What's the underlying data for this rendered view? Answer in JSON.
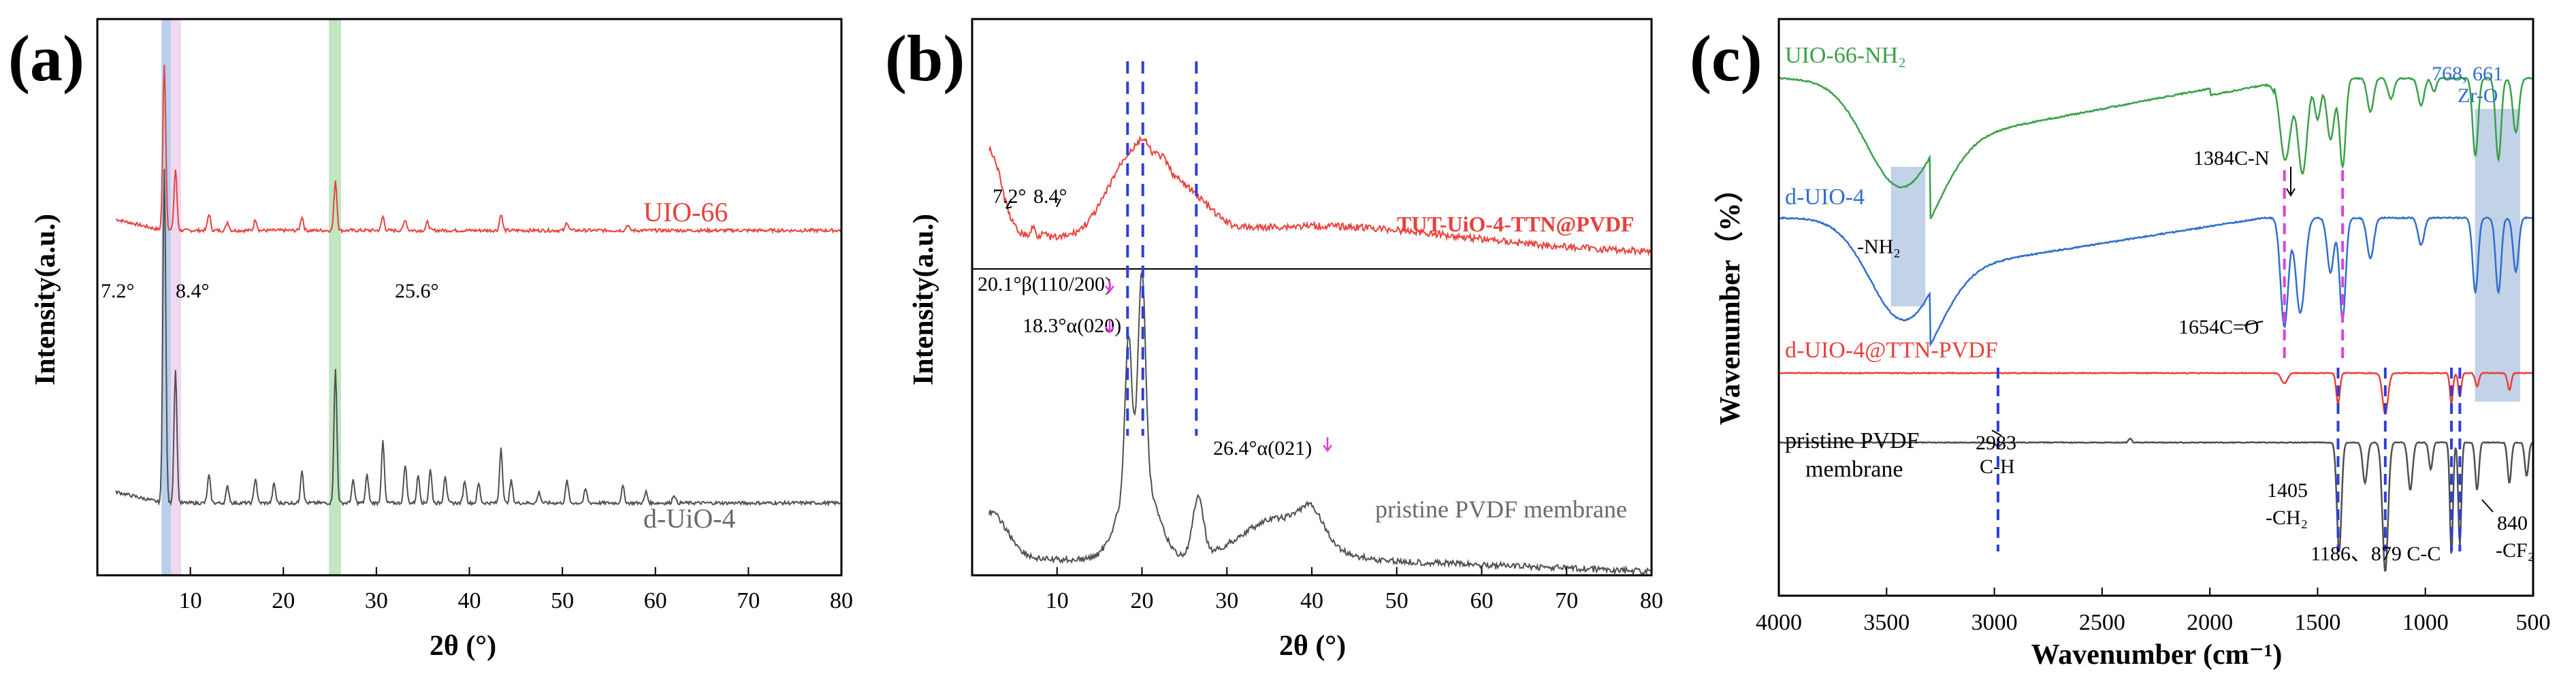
{
  "colors": {
    "red": "#e8413c",
    "dark": "#505050",
    "green": "#3aa04a",
    "blue": "#2f6fd0",
    "magenta": "#e040e0",
    "dash_blue": "#2f3fd8",
    "band_blue": "#7fa8df",
    "band_pink": "#e6b8e6",
    "band_green": "#8fd08f",
    "band_steel": "#9ab6d8"
  },
  "chart_data": [
    {
      "panel": "(a)",
      "type": "line",
      "xlabel": "2θ (°)",
      "ylabel": "Intensity(a.u.)",
      "xlim": [
        0,
        80
      ],
      "xticks": [
        "10",
        "20",
        "30",
        "40",
        "50",
        "60",
        "70",
        "80"
      ],
      "highlight_bands": [
        {
          "from": 6.9,
          "to": 7.9,
          "color": "band_blue"
        },
        {
          "from": 7.9,
          "to": 9.0,
          "color": "band_pink"
        },
        {
          "from": 24.9,
          "to": 26.2,
          "color": "band_green"
        }
      ],
      "series": [
        {
          "name": "UIO-66",
          "color": "red",
          "baseline": 0.62,
          "peaks": [
            [
              7.2,
              0.3
            ],
            [
              8.4,
              0.11
            ],
            [
              12.0,
              0.03
            ],
            [
              14.0,
              0.015
            ],
            [
              17.0,
              0.02
            ],
            [
              22.0,
              0.025
            ],
            [
              25.6,
              0.09
            ],
            [
              30.7,
              0.025
            ],
            [
              33.1,
              0.02
            ],
            [
              35.5,
              0.015
            ],
            [
              43.4,
              0.03
            ],
            [
              50.5,
              0.015
            ],
            [
              57.0,
              0.01
            ]
          ]
        },
        {
          "name": "d-UiO-4",
          "color": "dark",
          "baseline": 0.13,
          "peaks": [
            [
              7.2,
              0.6
            ],
            [
              8.4,
              0.24
            ],
            [
              12.0,
              0.05
            ],
            [
              14.0,
              0.03
            ],
            [
              17.0,
              0.045
            ],
            [
              19.0,
              0.035
            ],
            [
              22.0,
              0.06
            ],
            [
              25.6,
              0.24
            ],
            [
              27.5,
              0.04
            ],
            [
              29.0,
              0.05
            ],
            [
              30.7,
              0.11
            ],
            [
              33.1,
              0.07
            ],
            [
              34.5,
              0.05
            ],
            [
              35.8,
              0.06
            ],
            [
              37.4,
              0.05
            ],
            [
              39.5,
              0.04
            ],
            [
              41.0,
              0.035
            ],
            [
              43.4,
              0.1
            ],
            [
              44.5,
              0.04
            ],
            [
              47.5,
              0.02
            ],
            [
              50.5,
              0.04
            ],
            [
              52.5,
              0.025
            ],
            [
              56.5,
              0.03
            ],
            [
              59.0,
              0.02
            ],
            [
              62.0,
              0.015
            ]
          ]
        }
      ],
      "annotations": [
        "7.2°",
        "8.4°",
        "25.6°"
      ]
    },
    {
      "panel": "(b)",
      "type": "line",
      "xlabel": "2θ (°)",
      "ylabel": "Intensity(a.u.)",
      "xlim": [
        0,
        80
      ],
      "xticks": [
        "10",
        "20",
        "30",
        "40",
        "50",
        "60",
        "70",
        "80"
      ],
      "series": [
        {
          "name": "TUT-UiO-4-TTN@PVDF",
          "color": "red"
        },
        {
          "name": "pristine PVDF membrane",
          "color": "dark"
        }
      ],
      "reference_lines_2theta": [
        18.3,
        20.1,
        26.4
      ],
      "annotations": [
        "7.2°",
        "8.4°",
        "20.1°β(110/200)",
        "18.3°α(020)",
        "26.4°α(021)"
      ]
    },
    {
      "panel": "(c)",
      "type": "line",
      "xlabel": "Wavenumber (cm⁻¹)",
      "ylabel": "Wavenumber（%）",
      "xlim": [
        4000,
        500
      ],
      "xticks": [
        "4000",
        "3500",
        "3000",
        "2500",
        "2000",
        "1500",
        "1000",
        "500"
      ],
      "series": [
        {
          "name": "UIO-66-NH₂",
          "color": "green"
        },
        {
          "name": "d-UIO-4",
          "color": "blue"
        },
        {
          "name": "d-UIO-4@TTN-PVDF",
          "color": "red"
        },
        {
          "name": "pristine PVDF membrane",
          "color": "dark"
        }
      ],
      "magenta_lines_cm": [
        1654,
        1384
      ],
      "blue_lines_cm": [
        2983,
        1405,
        1186,
        879,
        840
      ],
      "highlight_bands_cm": [
        [
          3480,
          3320
        ],
        [
          770,
          560
        ]
      ],
      "annotations": [
        "-NH₂",
        "1384C-N",
        "768, 661",
        "Zr-O",
        "1654C=O",
        "2983",
        "C-H",
        "1405",
        "-CH₂",
        "1186、879 C-C",
        "840",
        "-CF₂"
      ]
    }
  ],
  "panels": {
    "a": {
      "label": "(a)",
      "ylabel": "Intensity(a.u.)",
      "xlabel": "2θ (°)",
      "series_label_1": "UIO-66",
      "series_label_2": "d-UiO-4",
      "ann_72": "7.2°",
      "ann_84": "8.4°",
      "ann_256": "25.6°"
    },
    "b": {
      "label": "(b)",
      "ylabel": "Intensity(a.u.)",
      "xlabel": "2θ (°)",
      "series_label_1": "TUT-UiO-4-TTN@PVDF",
      "series_label_2": "pristine PVDF membrane",
      "ann_72": "7.2°",
      "ann_84": "8.4°",
      "ann_201": "20.1°β(110/200)",
      "ann_183": "18.3°α(020)",
      "ann_264": "26.4°α(021)"
    },
    "c": {
      "label": "(c)",
      "ylabel": "Wavenumber（%）",
      "xlabel": "Wavenumber (cm⁻¹)",
      "series_label_1": "UIO-66-NH₂",
      "series_label_2": "d-UIO-4",
      "series_label_3": "d-UIO-4@TTN-PVDF",
      "series_label_4a": "pristine PVDF",
      "series_label_4b": "membrane",
      "ann_nh2": "-NH₂",
      "ann_1384": "1384C-N",
      "ann_768": "768, 661",
      "ann_zro": "Zr-O",
      "ann_1654": "1654C=O",
      "ann_2983": "2983",
      "ann_ch": "C-H",
      "ann_1405": "1405",
      "ann_ch2": "-CH₂",
      "ann_1186": "1186、879 C-C",
      "ann_840": "840",
      "ann_cf2": "-CF₂"
    }
  }
}
